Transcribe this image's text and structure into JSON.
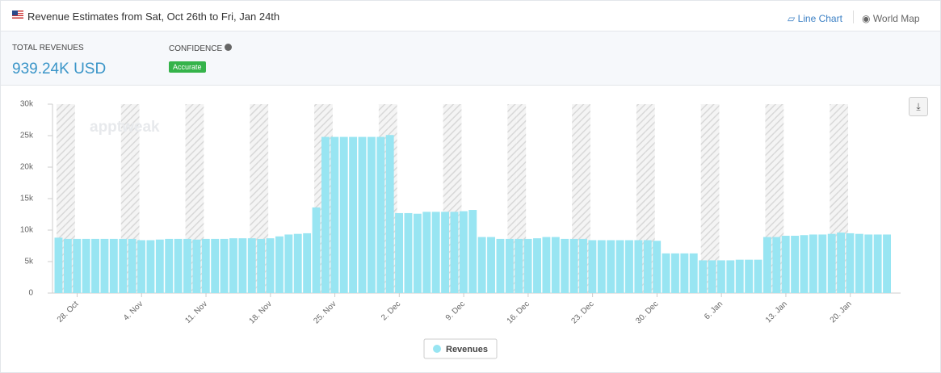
{
  "header": {
    "title": "Revenue Estimates from Sat, Oct 26th to Fri, Jan 24th",
    "links": [
      "Line Chart",
      "World Map"
    ]
  },
  "stats": {
    "total_label": "TOTAL REVENUES",
    "total_value": "939.24K USD",
    "confidence_label": "CONFIDENCE",
    "confidence_value": "Accurate"
  },
  "watermark": "apptweak",
  "chart_data": {
    "type": "bar",
    "categories": [
      null,
      null,
      "28. Oct",
      null,
      null,
      null,
      null,
      null,
      null,
      "4. Nov",
      null,
      null,
      null,
      null,
      null,
      null,
      "11. Nov",
      null,
      null,
      null,
      null,
      null,
      null,
      "18. Nov",
      null,
      null,
      null,
      null,
      null,
      null,
      "25. Nov",
      null,
      null,
      null,
      null,
      null,
      null,
      "2. Dec",
      null,
      null,
      null,
      null,
      null,
      null,
      "9. Dec",
      null,
      null,
      null,
      null,
      null,
      null,
      "16. Dec",
      null,
      null,
      null,
      null,
      null,
      null,
      "23. Dec",
      null,
      null,
      null,
      null,
      null,
      null,
      "30. Dec",
      null,
      null,
      null,
      null,
      null,
      null,
      "6. Jan",
      null,
      null,
      null,
      null,
      null,
      null,
      "13. Jan",
      null,
      null,
      null,
      null,
      null,
      null,
      "20. Jan",
      null,
      null,
      null,
      null
    ],
    "series": [
      {
        "name": "Revenues",
        "color": "#98e5f2",
        "values": [
          8800,
          8600,
          8600,
          8600,
          8600,
          8600,
          8600,
          8600,
          8600,
          8400,
          8400,
          8500,
          8600,
          8600,
          8600,
          8500,
          8600,
          8600,
          8600,
          8700,
          8700,
          8700,
          8600,
          8700,
          9000,
          9300,
          9400,
          9500,
          13600,
          24800,
          24800,
          24800,
          24800,
          24800,
          24800,
          24800,
          25100,
          12700,
          12700,
          12600,
          12900,
          12900,
          12900,
          12900,
          13000,
          13200,
          8900,
          8900,
          8600,
          8600,
          8600,
          8600,
          8700,
          8900,
          8900,
          8600,
          8600,
          8600,
          8400,
          8400,
          8400,
          8400,
          8400,
          8400,
          8400,
          8300,
          6300,
          6300,
          6300,
          6300,
          5200,
          5200,
          5200,
          5200,
          5300,
          5300,
          5300,
          8900,
          8900,
          9100,
          9100,
          9200,
          9300,
          9300,
          9400,
          9600,
          9500,
          9400,
          9300,
          9300,
          9300
        ]
      }
    ],
    "ylim": [
      0,
      30000
    ],
    "yticks": [
      {
        "value": 0,
        "label": "0"
      },
      {
        "value": 5000,
        "label": "5k"
      },
      {
        "value": 10000,
        "label": "10k"
      },
      {
        "value": 15000,
        "label": "15k"
      },
      {
        "value": 20000,
        "label": "20k"
      },
      {
        "value": 25000,
        "label": "25k"
      },
      {
        "value": 30000,
        "label": "30k"
      }
    ],
    "legend": "bottom"
  }
}
